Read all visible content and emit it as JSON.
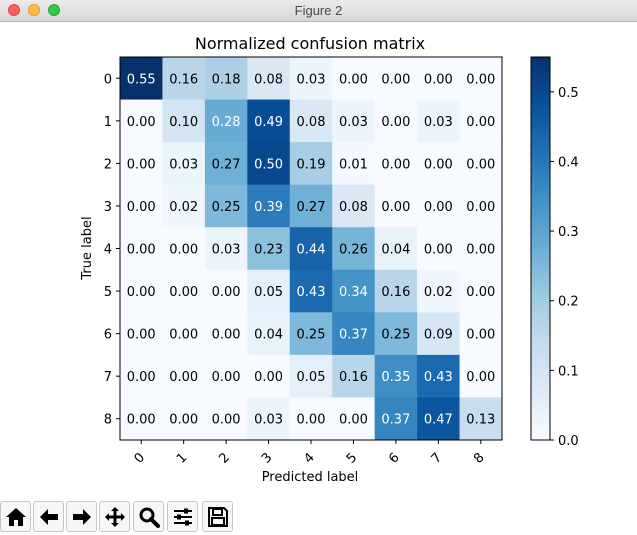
{
  "window": {
    "title": "Figure 2"
  },
  "toolbar": {
    "buttons": [
      {
        "icon": "home-icon"
      },
      {
        "icon": "back-arrow-icon"
      },
      {
        "icon": "forward-arrow-icon"
      },
      {
        "icon": "pan-move-icon"
      },
      {
        "icon": "zoom-magnifier-icon"
      },
      {
        "icon": "configure-subplots-icon"
      },
      {
        "icon": "save-disk-icon"
      }
    ]
  },
  "chart_data": {
    "type": "heatmap",
    "title": "Normalized confusion matrix",
    "xlabel": "Predicted label",
    "ylabel": "True label",
    "x_ticks": [
      "0",
      "1",
      "2",
      "3",
      "4",
      "5",
      "6",
      "7",
      "8"
    ],
    "y_ticks": [
      "0",
      "1",
      "2",
      "3",
      "4",
      "5",
      "6",
      "7",
      "8"
    ],
    "matrix": [
      [
        "0.55",
        "0.16",
        "0.18",
        "0.08",
        "0.03",
        "0.00",
        "0.00",
        "0.00",
        "0.00"
      ],
      [
        "0.00",
        "0.10",
        "0.28",
        "0.49",
        "0.08",
        "0.03",
        "0.00",
        "0.03",
        "0.00"
      ],
      [
        "0.00",
        "0.03",
        "0.27",
        "0.50",
        "0.19",
        "0.01",
        "0.00",
        "0.00",
        "0.00"
      ],
      [
        "0.00",
        "0.02",
        "0.25",
        "0.39",
        "0.27",
        "0.08",
        "0.00",
        "0.00",
        "0.00"
      ],
      [
        "0.00",
        "0.00",
        "0.03",
        "0.23",
        "0.44",
        "0.26",
        "0.04",
        "0.00",
        "0.00"
      ],
      [
        "0.00",
        "0.00",
        "0.00",
        "0.05",
        "0.43",
        "0.34",
        "0.16",
        "0.02",
        "0.00"
      ],
      [
        "0.00",
        "0.00",
        "0.00",
        "0.04",
        "0.25",
        "0.37",
        "0.25",
        "0.09",
        "0.00"
      ],
      [
        "0.00",
        "0.00",
        "0.00",
        "0.00",
        "0.05",
        "0.16",
        "0.35",
        "0.43",
        "0.00"
      ],
      [
        "0.00",
        "0.00",
        "0.00",
        "0.03",
        "0.00",
        "0.00",
        "0.37",
        "0.47",
        "0.13"
      ]
    ],
    "colormap": "Blues",
    "vmin": 0.0,
    "vmax": 0.55,
    "colorbar_ticks": [
      "0.0",
      "0.1",
      "0.2",
      "0.3",
      "0.4",
      "0.5"
    ],
    "text_threshold": 0.275,
    "text_colors": {
      "light": "#ffffff",
      "dark": "#000000"
    }
  }
}
